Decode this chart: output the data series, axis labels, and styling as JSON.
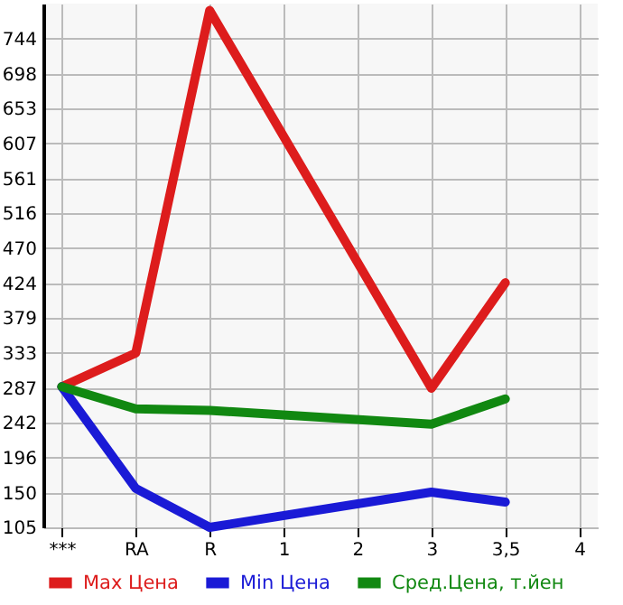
{
  "chart_data": {
    "type": "line",
    "categories": [
      "***",
      "RA",
      "R",
      "1",
      "2",
      "3",
      "3,5",
      "4"
    ],
    "series": [
      {
        "name": "Max Цена",
        "color": "#dd1c1c",
        "values": [
          289,
          333,
          781,
          null,
          null,
          287,
          425,
          null
        ]
      },
      {
        "name": "Min Цена",
        "color": "#1a1ad6",
        "values": [
          289,
          156,
          105,
          null,
          null,
          151,
          138,
          null
        ]
      },
      {
        "name": "Сред.Цена, т.йен",
        "color": "#118811",
        "values": [
          289,
          260,
          258,
          null,
          null,
          240,
          273,
          null
        ]
      }
    ],
    "ylim": [
      105,
      790
    ],
    "yticks": [
      105,
      150,
      196,
      242,
      287,
      333,
      379,
      424,
      470,
      516,
      561,
      607,
      653,
      698,
      744
    ],
    "grid": true,
    "legend": "bottom",
    "marker": "none",
    "line_style": "solid"
  }
}
